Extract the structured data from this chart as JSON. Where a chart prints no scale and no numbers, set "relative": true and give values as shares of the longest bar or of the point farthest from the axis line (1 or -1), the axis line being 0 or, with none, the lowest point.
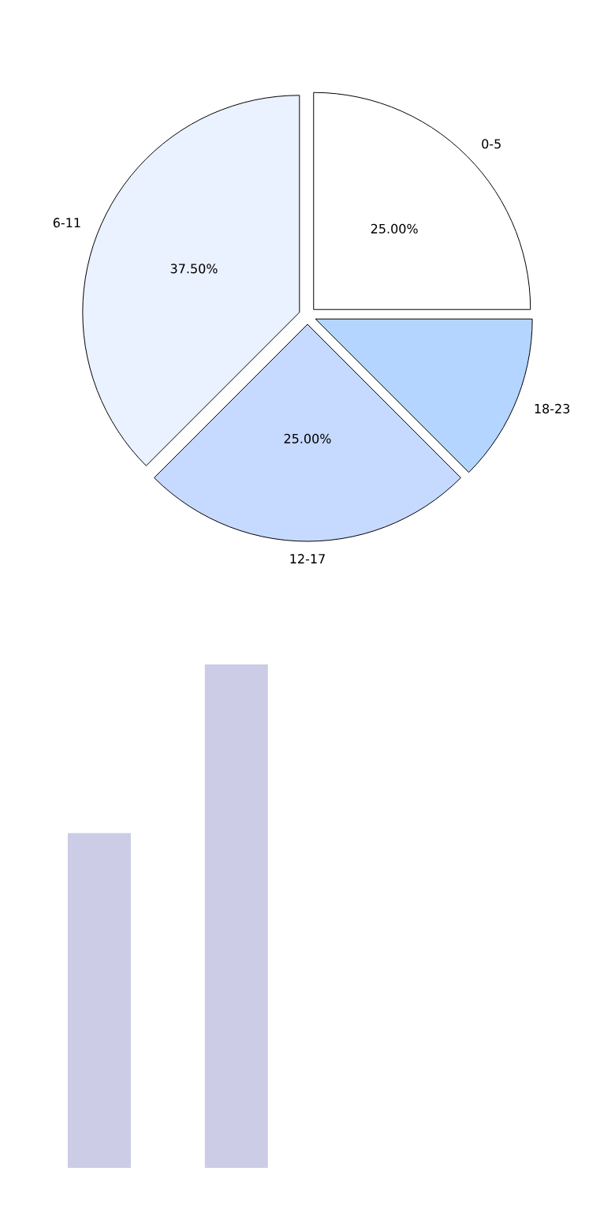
{
  "chart_data": [
    {
      "type": "pie",
      "categories": [
        "0-5",
        "6-11",
        "12-17",
        "18-23"
      ],
      "values": [
        25,
        37.5,
        25,
        12.5
      ],
      "colors": [
        "#ffffff",
        "#eaf1ff",
        "#c6d9ff",
        "#b3d5ff"
      ],
      "value_labels": [
        "25.00%",
        "37.50%",
        "25.00%",
        null
      ]
    },
    {
      "type": "bar",
      "relative": true,
      "categories": [
        null,
        null
      ],
      "values": [
        0.665,
        1
      ],
      "color": "#cccce6"
    }
  ]
}
